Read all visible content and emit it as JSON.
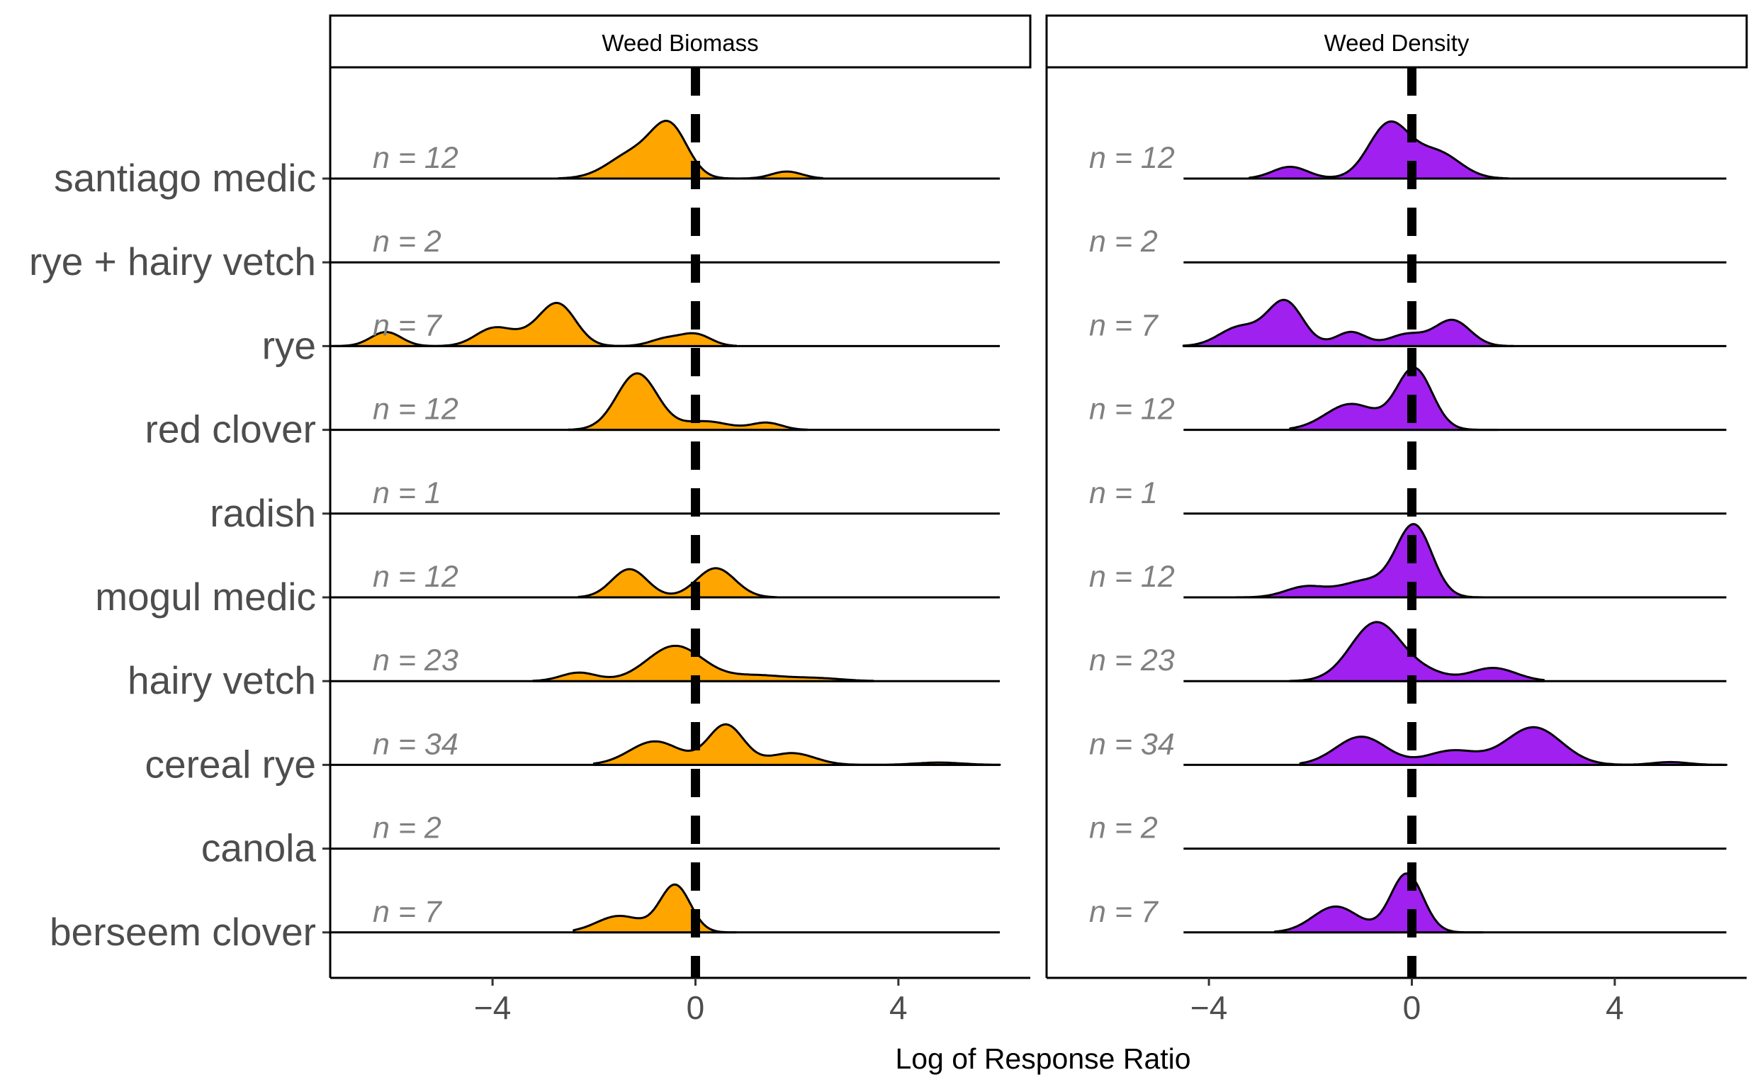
{
  "chart_data": {
    "type": "density_ridgeline",
    "xlabel": "Log of Response Ratio",
    "xticks": [
      -4,
      0,
      4
    ],
    "xlim": [
      -7.2,
      6.6
    ],
    "reference_line_x": 0,
    "categories": [
      "berseem clover",
      "canola",
      "cereal rye",
      "hairy vetch",
      "mogul medic",
      "radish",
      "red clover",
      "rye",
      "rye + hairy vetch",
      "santiago medic"
    ],
    "panels": [
      {
        "strip": "Weed Biomass",
        "fill": "#FFA500",
        "series": [
          {
            "category": "berseem clover",
            "n_label": "n = 7",
            "range": [
              -2.4,
              0.8
            ],
            "peaks": [
              {
                "mu": -0.4,
                "sd": 0.3,
                "h": 1.0
              },
              {
                "mu": -1.5,
                "sd": 0.45,
                "h": 0.35
              }
            ]
          },
          {
            "category": "canola",
            "n_label": "n = 2",
            "range": null,
            "peaks": []
          },
          {
            "category": "cereal rye",
            "n_label": "n = 34",
            "range": [
              -2.0,
              6.0
            ],
            "peaks": [
              {
                "mu": 0.6,
                "sd": 0.35,
                "h": 0.85
              },
              {
                "mu": -0.8,
                "sd": 0.5,
                "h": 0.5
              },
              {
                "mu": 1.9,
                "sd": 0.45,
                "h": 0.25
              },
              {
                "mu": 4.8,
                "sd": 0.45,
                "h": 0.05
              }
            ]
          },
          {
            "category": "hairy vetch",
            "n_label": "n = 23",
            "range": [
              -3.2,
              3.5
            ],
            "peaks": [
              {
                "mu": -0.4,
                "sd": 0.55,
                "h": 0.75
              },
              {
                "mu": -2.3,
                "sd": 0.35,
                "h": 0.18
              },
              {
                "mu": 1.2,
                "sd": 0.55,
                "h": 0.12
              },
              {
                "mu": 2.4,
                "sd": 0.5,
                "h": 0.06
              }
            ]
          },
          {
            "category": "mogul medic",
            "n_label": "n = 12",
            "range": [
              -2.3,
              1.6
            ],
            "peaks": [
              {
                "mu": -1.3,
                "sd": 0.35,
                "h": 0.6
              },
              {
                "mu": 0.4,
                "sd": 0.38,
                "h": 0.62
              }
            ]
          },
          {
            "category": "radish",
            "n_label": "n = 1",
            "range": null,
            "peaks": []
          },
          {
            "category": "red clover",
            "n_label": "n = 12",
            "range": [
              -2.5,
              2.2
            ],
            "peaks": [
              {
                "mu": -1.15,
                "sd": 0.4,
                "h": 1.2
              },
              {
                "mu": 0.2,
                "sd": 0.45,
                "h": 0.18
              },
              {
                "mu": 1.4,
                "sd": 0.3,
                "h": 0.15
              }
            ]
          },
          {
            "category": "rye",
            "n_label": "n = 7",
            "range": [
              -7.2,
              0.8
            ],
            "peaks": [
              {
                "mu": -2.7,
                "sd": 0.35,
                "h": 0.85
              },
              {
                "mu": -4.0,
                "sd": 0.35,
                "h": 0.35
              },
              {
                "mu": -6.1,
                "sd": 0.3,
                "h": 0.3
              },
              {
                "mu": -3.3,
                "sd": 0.4,
                "h": 0.2
              },
              {
                "mu": 0.0,
                "sd": 0.3,
                "h": 0.25
              },
              {
                "mu": -0.6,
                "sd": 0.3,
                "h": 0.15
              }
            ]
          },
          {
            "category": "rye + hairy vetch",
            "n_label": "n = 2",
            "range": null,
            "peaks": []
          },
          {
            "category": "santiago medic",
            "n_label": "n = 12",
            "range": [
              -2.7,
              2.5
            ],
            "peaks": [
              {
                "mu": -0.5,
                "sd": 0.35,
                "h": 1.0
              },
              {
                "mu": -1.2,
                "sd": 0.5,
                "h": 0.55
              },
              {
                "mu": 1.8,
                "sd": 0.3,
                "h": 0.15
              }
            ]
          }
        ]
      },
      {
        "strip": "Weed Density",
        "fill": "#A020F0",
        "series": [
          {
            "category": "berseem clover",
            "n_label": "n = 7",
            "range": [
              -2.7,
              1.4
            ],
            "peaks": [
              {
                "mu": -0.1,
                "sd": 0.32,
                "h": 1.25
              },
              {
                "mu": -1.5,
                "sd": 0.45,
                "h": 0.55
              }
            ]
          },
          {
            "category": "canola",
            "n_label": "n = 2",
            "range": null,
            "peaks": []
          },
          {
            "category": "cereal rye",
            "n_label": "n = 34",
            "range": [
              -2.2,
              6.2
            ],
            "peaks": [
              {
                "mu": 2.4,
                "sd": 0.55,
                "h": 0.8
              },
              {
                "mu": -1.0,
                "sd": 0.5,
                "h": 0.6
              },
              {
                "mu": 0.8,
                "sd": 0.5,
                "h": 0.3
              },
              {
                "mu": 5.1,
                "sd": 0.35,
                "h": 0.06
              }
            ]
          },
          {
            "category": "hairy vetch",
            "n_label": "n = 23",
            "range": [
              -2.4,
              2.6
            ],
            "peaks": [
              {
                "mu": -0.7,
                "sd": 0.5,
                "h": 1.25
              },
              {
                "mu": 1.6,
                "sd": 0.45,
                "h": 0.28
              },
              {
                "mu": 0.3,
                "sd": 0.4,
                "h": 0.15
              }
            ]
          },
          {
            "category": "mogul medic",
            "n_label": "n = 12",
            "range": [
              -3.6,
              1.4
            ],
            "peaks": [
              {
                "mu": 0.05,
                "sd": 0.35,
                "h": 1.5
              },
              {
                "mu": -0.9,
                "sd": 0.5,
                "h": 0.35
              },
              {
                "mu": -2.1,
                "sd": 0.4,
                "h": 0.22
              }
            ]
          },
          {
            "category": "radish",
            "n_label": "n = 1",
            "range": null,
            "peaks": []
          },
          {
            "category": "red clover",
            "n_label": "n = 12",
            "range": [
              -2.4,
              1.7
            ],
            "peaks": [
              {
                "mu": 0.05,
                "sd": 0.35,
                "h": 1.3
              },
              {
                "mu": -1.2,
                "sd": 0.5,
                "h": 0.55
              }
            ]
          },
          {
            "category": "rye",
            "n_label": "n = 7",
            "range": [
              -4.5,
              2.0
            ],
            "peaks": [
              {
                "mu": -2.5,
                "sd": 0.35,
                "h": 0.95
              },
              {
                "mu": -3.4,
                "sd": 0.4,
                "h": 0.4
              },
              {
                "mu": -1.2,
                "sd": 0.3,
                "h": 0.3
              },
              {
                "mu": 0.8,
                "sd": 0.35,
                "h": 0.55
              },
              {
                "mu": -0.1,
                "sd": 0.35,
                "h": 0.25
              }
            ]
          },
          {
            "category": "rye + hairy vetch",
            "n_label": "n = 2",
            "range": null,
            "peaks": []
          },
          {
            "category": "santiago medic",
            "n_label": "n = 12",
            "range": [
              -3.2,
              1.9
            ],
            "peaks": [
              {
                "mu": -0.45,
                "sd": 0.4,
                "h": 1.15
              },
              {
                "mu": 0.5,
                "sd": 0.45,
                "h": 0.55
              },
              {
                "mu": -2.4,
                "sd": 0.35,
                "h": 0.25
              }
            ]
          }
        ]
      }
    ]
  }
}
